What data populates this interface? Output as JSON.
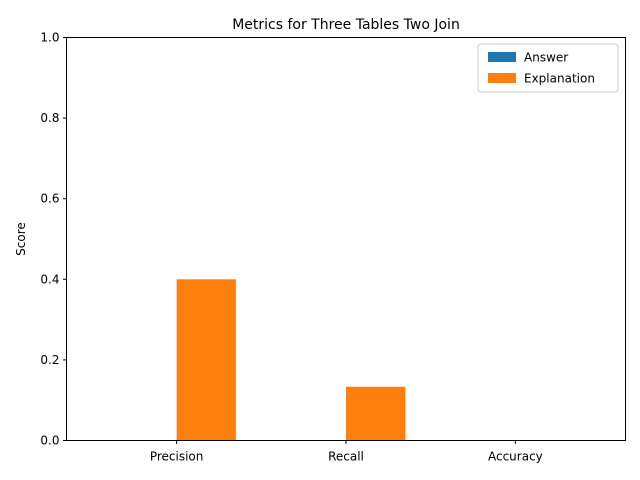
{
  "chart_data": {
    "type": "bar",
    "title": "Metrics for Three Tables Two Join",
    "xlabel": "",
    "ylabel": "Score",
    "categories": [
      "Precision",
      "Recall",
      "Accuracy"
    ],
    "ylim": [
      0,
      1
    ],
    "yticks": [
      "0.0",
      "0.2",
      "0.4",
      "0.6",
      "0.8",
      "1.0"
    ],
    "grid": false,
    "legend_position": "top-right",
    "series": [
      {
        "name": "Answer",
        "color": "#1f77b4",
        "values": [
          0,
          0,
          0
        ]
      },
      {
        "name": "Explanation",
        "color": "#ff7f0e",
        "values": [
          0.4,
          0.1333,
          0
        ]
      }
    ]
  }
}
